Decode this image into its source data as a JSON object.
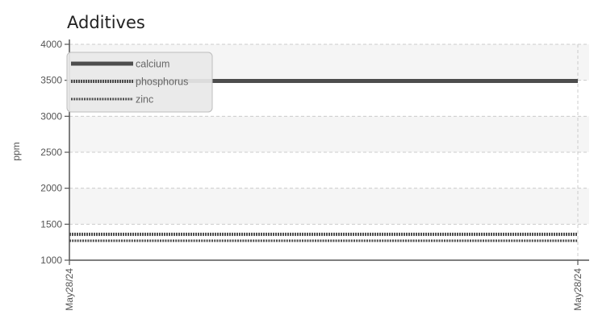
{
  "chart_data": {
    "type": "line",
    "title": "Additives",
    "xlabel": "",
    "ylabel": "ppm",
    "x": [
      "May28/24",
      "May28/24"
    ],
    "x_tick_labels": [
      "May28/24",
      "May28/24"
    ],
    "ylim": [
      1000,
      4000
    ],
    "y_ticks": [
      1000,
      1500,
      2000,
      2500,
      3000,
      3500,
      4000
    ],
    "grid": true,
    "legend_position": "top-left",
    "series": [
      {
        "name": "calcium",
        "values": [
          3490,
          3490
        ],
        "color": "#4d4d4d",
        "style": "solid"
      },
      {
        "name": "phosphorus",
        "values": [
          1360,
          1360
        ],
        "color": "#4d4d4d",
        "style": "dotted-heavy"
      },
      {
        "name": "zinc",
        "values": [
          1270,
          1270
        ],
        "color": "#4d4d4d",
        "style": "dotted"
      }
    ]
  }
}
